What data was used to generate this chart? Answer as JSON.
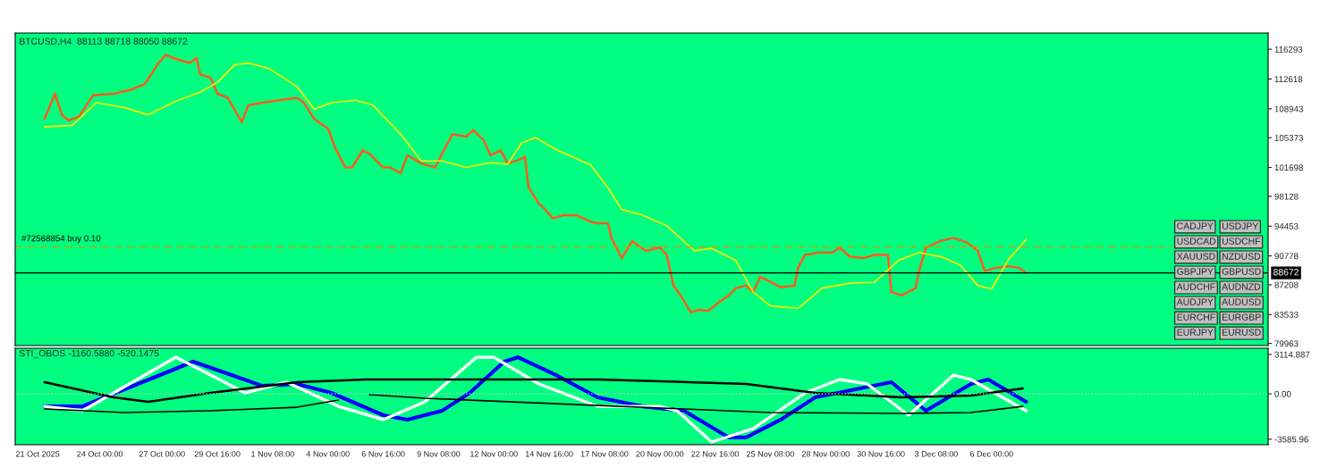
{
  "chart_data": [
    {
      "type": "line",
      "title": "BTCUSD,H4  88113 88718 88050 88672",
      "series": [
        {
          "color": "#ff5a1e",
          "x": [
            "2025-10-21T08:00",
            "2025-10-21T20:00",
            "2025-10-22T04:00",
            "2025-10-22T12:00",
            "2025-10-23T00:00",
            "2025-10-23T16:00",
            "2025-10-24T16:00",
            "2025-10-25T12:00",
            "2025-10-26T04:00",
            "2025-10-26T20:00",
            "2025-10-27T04:00",
            "2025-10-27T16:00",
            "2025-10-28T08:00",
            "2025-10-28T16:00",
            "2025-10-28T20:00",
            "2025-10-29T08:00",
            "2025-10-29T16:00",
            "2025-10-30T04:00",
            "2025-10-30T20:00",
            "2025-10-31T04:00",
            "2025-10-31T20:00",
            "2025-11-01T16:00",
            "2025-11-02T12:00",
            "2025-11-02T20:00",
            "2025-11-03T08:00",
            "2025-11-04T00:00",
            "2025-11-04T08:00",
            "2025-11-04T20:00",
            "2025-11-05T04:00",
            "2025-11-05T16:00",
            "2025-11-06T00:00",
            "2025-11-06T16:00",
            "2025-11-07T00:00",
            "2025-11-07T12:00",
            "2025-11-07T20:00",
            "2025-11-08T12:00",
            "2025-11-09T04:00",
            "2025-11-09T12:00",
            "2025-11-10T00:00",
            "2025-11-10T16:00",
            "2025-11-11T00:00",
            "2025-11-11T12:00",
            "2025-11-11T20:00",
            "2025-11-12T08:00",
            "2025-11-12T16:00",
            "2025-11-13T04:00",
            "2025-11-13T12:00",
            "2025-11-13T16:00",
            "2025-11-14T04:00",
            "2025-11-14T08:00",
            "2025-11-14T20:00",
            "2025-11-15T08:00",
            "2025-11-16T00:00",
            "2025-11-16T16:00",
            "2025-11-17T00:00",
            "2025-11-17T12:00",
            "2025-11-17T16:00",
            "2025-11-18T04:00",
            "2025-11-18T16:00",
            "2025-11-19T08:00",
            "2025-11-20T00:00",
            "2025-11-20T08:00",
            "2025-11-20T16:00",
            "2025-11-21T00:00",
            "2025-11-21T12:00",
            "2025-11-21T20:00",
            "2025-11-22T08:00",
            "2025-11-22T20:00",
            "2025-11-23T08:00",
            "2025-11-23T16:00",
            "2025-11-24T04:00",
            "2025-11-24T12:00",
            "2025-11-24T20:00",
            "2025-11-25T04:00",
            "2025-11-25T20:00",
            "2025-11-26T12:00",
            "2025-11-26T16:00",
            "2025-11-27T00:00",
            "2025-11-27T16:00",
            "2025-11-28T08:00",
            "2025-11-28T16:00",
            "2025-11-29T04:00",
            "2025-11-29T20:00",
            "2025-11-30T08:00",
            "2025-12-01T00:00",
            "2025-12-01T04:00",
            "2025-12-01T16:00",
            "2025-12-02T08:00",
            "2025-12-02T12:00",
            "2025-12-02T20:00",
            "2025-12-03T12:00",
            "2025-12-04T04:00",
            "2025-12-04T20:00",
            "2025-12-05T08:00",
            "2025-12-05T16:00",
            "2025-12-06T04:00",
            "2025-12-06T20:00",
            "2025-12-07T08:00",
            "2025-12-07T16:00"
          ],
          "values": [
            107700,
            110800,
            108200,
            107500,
            108000,
            110600,
            110800,
            111300,
            112000,
            114600,
            115600,
            115100,
            114600,
            115200,
            113200,
            112800,
            110800,
            110300,
            107300,
            109400,
            109700,
            110000,
            110300,
            109700,
            107700,
            106500,
            104200,
            101700,
            101700,
            103800,
            103400,
            101700,
            101700,
            101000,
            103200,
            102200,
            101700,
            103400,
            105800,
            105500,
            106300,
            105100,
            103200,
            103800,
            102200,
            102600,
            103000,
            99300,
            97200,
            96900,
            95400,
            95800,
            95800,
            95000,
            94800,
            94800,
            93000,
            90500,
            92600,
            91400,
            91800,
            90900,
            87100,
            85900,
            83800,
            84100,
            84000,
            85000,
            85900,
            86800,
            87100,
            86300,
            88200,
            87800,
            86900,
            87100,
            89300,
            90900,
            91200,
            91200,
            91800,
            90700,
            90500,
            90900,
            90900,
            86300,
            85900,
            86800,
            88900,
            91800,
            92600,
            93000,
            92400,
            91400,
            88900,
            89300,
            89500,
            89300,
            88672
          ]
        },
        {
          "color": "#ffe600",
          "x": [
            "2025-10-21T08:00",
            "2025-10-22T16:00",
            "2025-10-23T20:00",
            "2025-10-25T04:00",
            "2025-10-26T08:00",
            "2025-10-27T16:00",
            "2025-10-28T20:00",
            "2025-10-29T16:00",
            "2025-10-30T12:00",
            "2025-10-31T04:00",
            "2025-11-01T04:00",
            "2025-11-02T12:00",
            "2025-11-03T08:00",
            "2025-11-04T04:00",
            "2025-11-05T08:00",
            "2025-11-06T04:00",
            "2025-11-07T12:00",
            "2025-11-08T12:00",
            "2025-11-09T12:00",
            "2025-11-10T16:00",
            "2025-11-11T20:00",
            "2025-11-12T16:00",
            "2025-11-13T08:00",
            "2025-11-14T00:00",
            "2025-11-15T00:00",
            "2025-11-16T16:00",
            "2025-11-17T12:00",
            "2025-11-18T04:00",
            "2025-11-19T04:00",
            "2025-11-20T08:00",
            "2025-11-21T16:00",
            "2025-11-22T12:00",
            "2025-11-23T16:00",
            "2025-11-24T12:00",
            "2025-11-25T08:00",
            "2025-11-26T16:00",
            "2025-11-27T20:00",
            "2025-11-29T04:00",
            "2025-11-30T08:00",
            "2025-12-01T12:00",
            "2025-12-02T12:00",
            "2025-12-03T16:00",
            "2025-12-04T12:00",
            "2025-12-05T08:00",
            "2025-12-06T00:00",
            "2025-12-06T20:00",
            "2025-12-07T16:00"
          ],
          "values": [
            106700,
            106900,
            109700,
            109100,
            108200,
            109900,
            111000,
            112200,
            114400,
            114600,
            113900,
            111700,
            108900,
            109700,
            110000,
            109400,
            105800,
            102500,
            102500,
            101700,
            102300,
            102100,
            104700,
            105400,
            103900,
            102000,
            99200,
            96500,
            95800,
            94500,
            91400,
            91700,
            90200,
            86300,
            84600,
            84300,
            86800,
            87400,
            87500,
            90200,
            91200,
            90600,
            89600,
            87100,
            86700,
            90400,
            92800
          ]
        }
      ],
      "xlim": [
        "2025-10-19T22:00",
        "2025-12-19T08:00"
      ],
      "ylim": [
        79700,
        118300
      ],
      "xticks": [
        {
          "value": "2025-10-21T00:00",
          "label": null
        },
        {
          "value": "2025-10-24T00:00",
          "label": null
        },
        {
          "value": "2025-10-27T00:00",
          "label": null
        },
        {
          "value": "2025-10-29T16:00",
          "label": null
        },
        {
          "value": "2025-11-01T08:00",
          "label": null
        },
        {
          "value": "2025-11-04T00:00",
          "label": null
        },
        {
          "value": "2025-11-06T16:00",
          "label": null
        },
        {
          "value": "2025-11-09T08:00",
          "label": null
        },
        {
          "value": "2025-11-12T00:00",
          "label": null
        },
        {
          "value": "2025-11-14T16:00",
          "label": null
        },
        {
          "value": "2025-11-17T08:00",
          "label": null
        },
        {
          "value": "2025-11-20T00:00",
          "label": null
        },
        {
          "value": "2025-11-22T16:00",
          "label": null
        },
        {
          "value": "2025-11-25T08:00",
          "label": null
        },
        {
          "value": "2025-11-28T00:00",
          "label": null
        },
        {
          "value": "2025-11-30T16:00",
          "label": null
        },
        {
          "value": "2025-12-03T08:00",
          "label": null
        },
        {
          "value": "2025-12-06T00:00",
          "label": null
        }
      ],
      "yticks": [
        116293,
        112618,
        108943,
        105373,
        101698,
        98128,
        94453,
        90778,
        87208,
        83533,
        79963
      ],
      "tick_labels": "y",
      "grid": false,
      "legend": false,
      "line_style": "solid",
      "ref_lines": [
        {
          "axis": "y",
          "value": 88672,
          "label": "88672",
          "color": "#000000",
          "line_style": "solid"
        },
        {
          "axis": "y",
          "value": 91900,
          "label": "#72568854 buy 0.10",
          "color": "#c8a000",
          "line_style": "dashed"
        }
      ],
      "annotations": [
        "CADJPY",
        "USDJPY",
        "USDCAD",
        "USDCHF",
        "XAUUSD",
        "NZDUSD",
        "GBPJPY",
        "GBPUSD",
        "AUDCHF",
        "AUDNZD",
        "AUDJPY",
        "AUDUSD",
        "EURCHF",
        "EURGBP",
        "EURJPY",
        "EURUSD"
      ]
    },
    {
      "type": "line",
      "title": "STI_OBOS -1160.5880 -520.1475",
      "series": [
        {
          "color": "#0000ff",
          "x": [
            "2025-10-21T08:00",
            "2025-10-23T04:00",
            "2025-10-28T12:00",
            "2025-10-31T20:00",
            "2025-11-02T12:00",
            "2025-11-04T04:00",
            "2025-11-06T16:00",
            "2025-11-07T20:00",
            "2025-11-09T12:00",
            "2025-11-10T20:00",
            "2025-11-12T12:00",
            "2025-11-13T04:00",
            "2025-11-15T00:00",
            "2025-11-17T00:00",
            "2025-11-19T04:00",
            "2025-11-21T04:00",
            "2025-11-23T08:00",
            "2025-11-24T04:00",
            "2025-11-25T20:00",
            "2025-11-27T12:00",
            "2025-12-01T04:00",
            "2025-12-02T20:00",
            "2025-12-05T00:00",
            "2025-12-05T20:00",
            "2025-12-07T16:00"
          ],
          "values": [
            -990,
            -990,
            2540,
            630,
            780,
            70,
            -1690,
            -2040,
            -1340,
            70,
            2540,
            2890,
            1480,
            -280,
            -990,
            -1340,
            -3450,
            -3450,
            -2040,
            -280,
            920,
            -1340,
            780,
            1130,
            -630
          ]
        },
        {
          "color": "#ffffff",
          "x": [
            "2025-10-21T08:00",
            "2025-10-23T04:00",
            "2025-10-27T16:00",
            "2025-10-31T00:00",
            "2025-11-02T00:00",
            "2025-11-04T12:00",
            "2025-11-06T16:00",
            "2025-11-08T16:00",
            "2025-11-11T04:00",
            "2025-11-12T00:00",
            "2025-11-14T04:00",
            "2025-11-17T00:00",
            "2025-11-20T00:00",
            "2025-11-20T20:00",
            "2025-11-22T12:00",
            "2025-11-24T12:00",
            "2025-11-27T00:00",
            "2025-11-28T16:00",
            "2025-11-30T00:00",
            "2025-12-02T00:00",
            "2025-12-04T04:00",
            "2025-12-05T00:00",
            "2025-12-07T16:00"
          ],
          "values": [
            -990,
            -1340,
            2890,
            70,
            920,
            -990,
            -2040,
            -630,
            2890,
            2890,
            780,
            -990,
            -990,
            -1340,
            -3810,
            -2750,
            70,
            1130,
            780,
            -1690,
            1480,
            1130,
            -1340
          ]
        },
        {
          "color": "#000000",
          "x": [
            "2025-10-21T08:00",
            "2025-10-24T16:00",
            "2025-10-26T08:00",
            "2025-10-29T08:00",
            "2025-11-02T12:00",
            "2025-11-05T20:00",
            "2025-11-17T00:00",
            "2025-11-24T04:00",
            "2025-11-27T12:00",
            "2025-12-01T16:00",
            "2025-12-05T00:00",
            "2025-12-07T12:00"
          ],
          "values": [
            920,
            -280,
            -630,
            70,
            920,
            1130,
            1130,
            780,
            70,
            -280,
            -140,
            420
          ]
        },
        {
          "color": "#000000",
          "x": [
            "2025-10-21T08:00",
            "2025-10-25T04:00",
            "2025-10-29T08:00",
            "2025-11-02T12:00",
            "2025-11-04T12:00",
            "2025-11-05T04:00",
            "2025-11-06T00:00",
            "2025-11-08T16:00",
            "2025-11-15T00:00",
            "2025-11-21T04:00",
            "2025-11-25T08:00",
            "2025-12-01T16:00",
            "2025-12-05T00:00",
            "2025-12-07T12:00"
          ],
          "values": [
            -1200,
            -1480,
            -1340,
            -1060,
            -490,
            null,
            -70,
            -350,
            -780,
            -1200,
            -1480,
            -1550,
            -1480,
            -990
          ]
        }
      ],
      "xlim": [
        "2025-10-19T22:00",
        "2025-12-19T08:00"
      ],
      "ylim": [
        -4020,
        3600
      ],
      "xticks": [
        {
          "value": "2025-10-21T00:00",
          "label": "21 Oct 2025"
        },
        {
          "value": "2025-10-24T00:00",
          "label": "24 Oct 00:00"
        },
        {
          "value": "2025-10-27T00:00",
          "label": "27 Oct 00:00"
        },
        {
          "value": "2025-10-29T16:00",
          "label": "29 Oct 16:00"
        },
        {
          "value": "2025-11-01T08:00",
          "label": "1 Nov 08:00"
        },
        {
          "value": "2025-11-04T00:00",
          "label": "4 Nov 00:00"
        },
        {
          "value": "2025-11-06T16:00",
          "label": "6 Nov 16:00"
        },
        {
          "value": "2025-11-09T08:00",
          "label": "9 Nov 08:00"
        },
        {
          "value": "2025-11-12T00:00",
          "label": "12 Nov 00:00"
        },
        {
          "value": "2025-11-14T16:00",
          "label": "14 Nov 16:00"
        },
        {
          "value": "2025-11-17T08:00",
          "label": "17 Nov 08:00"
        },
        {
          "value": "2025-11-20T00:00",
          "label": "20 Nov 00:00"
        },
        {
          "value": "2025-11-22T16:00",
          "label": "22 Nov 16:00"
        },
        {
          "value": "2025-11-25T08:00",
          "label": "25 Nov 08:00"
        },
        {
          "value": "2025-11-28T00:00",
          "label": "28 Nov 00:00"
        },
        {
          "value": "2025-11-30T16:00",
          "label": "30 Nov 16:00"
        },
        {
          "value": "2025-12-03T08:00",
          "label": "3 Dec 08:00"
        },
        {
          "value": "2025-12-06T00:00",
          "label": "6 Dec 00:00"
        }
      ],
      "yticks": [
        {
          "value": 3114.887,
          "label": "3114.887"
        },
        {
          "value": 0,
          "label": "0.00"
        },
        {
          "value": -3585.96,
          "label": "-3585.96"
        }
      ],
      "grid": false,
      "legend": false,
      "line_style": "solid",
      "ref_lines": [
        {
          "axis": "y",
          "value": 0,
          "color": "#c0c0c0",
          "line_style": "dotted"
        }
      ]
    }
  ]
}
